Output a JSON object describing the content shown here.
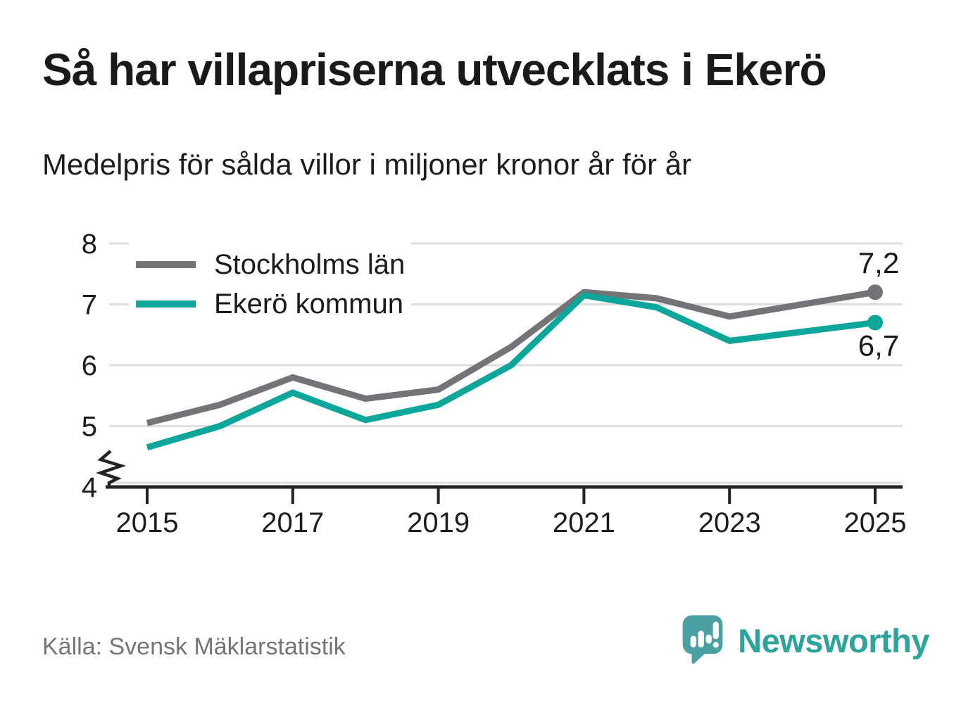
{
  "title": "Så har villapriserna utvecklats i Ekerö",
  "subtitle": "Medelpris för sålda villor i miljoner kronor år för år",
  "source": "Källa: Svensk Mäklarstatistik",
  "logo": {
    "name": "Newsworthy"
  },
  "colors": {
    "county_line": "#757378",
    "municipality_line": "#0ca69b",
    "grid": "#dedede",
    "axis": "#222222",
    "text": "#1a1a1a",
    "tick_text": "#1d1d1d",
    "muted_text": "#757575",
    "logo_bubble": "#4ba1a1",
    "logo_text": "#2da39b",
    "end_label_halo": "#ffffff"
  },
  "chart_data": {
    "type": "line",
    "title": "Så har villapriserna utvecklats i Ekerö",
    "subtitle": "Medelpris för sålda villor i miljoner kronor år för år",
    "x": [
      2015,
      2016,
      2017,
      2018,
      2019,
      2020,
      2021,
      2022,
      2023,
      2024,
      2025
    ],
    "series": [
      {
        "name": "Stockholms län",
        "color": "#757378",
        "values": [
          5.05,
          5.35,
          5.8,
          5.45,
          5.6,
          6.3,
          7.2,
          7.1,
          6.8,
          7.0,
          7.2
        ],
        "end_label": "7,2",
        "end_label_position": "above"
      },
      {
        "name": "Ekerö kommun",
        "color": "#0ca69b",
        "values": [
          4.65,
          5.0,
          5.55,
          5.1,
          5.35,
          6.0,
          7.15,
          6.95,
          6.4,
          6.55,
          6.7
        ],
        "end_label": "6,7",
        "end_label_position": "below"
      }
    ],
    "xlabel": "",
    "ylabel": "",
    "ylim": [
      4,
      8
    ],
    "yticks": [
      4,
      5,
      6,
      7,
      8
    ],
    "xticks": [
      2015,
      2017,
      2019,
      2021,
      2023,
      2025
    ],
    "axis_break_at_bottom": true,
    "grid": "horizontal",
    "legend_position": "top-left-inside"
  }
}
